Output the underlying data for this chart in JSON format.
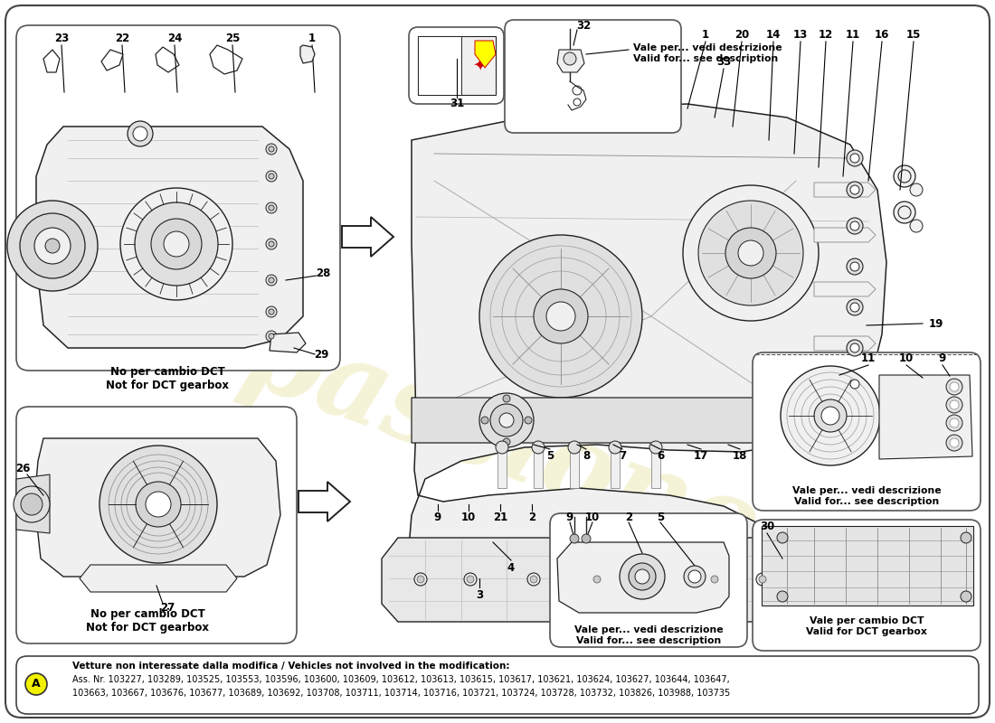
{
  "bg": "#ffffff",
  "border_color": "#333333",
  "watermark_text": "passione",
  "watermark_color": "#d4c84a",
  "watermark_alpha": 0.22,
  "bottom_box": {
    "circle_color": "#f0f000",
    "line1": "Vetture non interessate dalla modifica / Vehicles not involved in the modification:",
    "line2": "Ass. Nr. 103227, 103289, 103525, 103553, 103596, 103600, 103609, 103612, 103613, 103615, 103617, 103621, 103624, 103627, 103644, 103647,",
    "line3": "103663, 103667, 103676, 103677, 103689, 103692, 103708, 103711, 103714, 103716, 103721, 103724, 103728, 103732, 103826, 103988, 103735"
  },
  "note_dct_top": "No per cambio DCT\nNot for DCT gearbox",
  "note_dct_bottom": "No per cambio DCT\nNot for DCT gearbox",
  "note_vale_32": "Vale per... vedi descrizione\nValid for... see description",
  "note_vale_right": "Vale per... vedi descrizione\nValid for... see description",
  "note_vale_bottom_center": "Vale per... vedi descrizione\nValid for... see description",
  "note_dct_gearbox": "Vale per cambio DCT\nValid for DCT gearbox"
}
